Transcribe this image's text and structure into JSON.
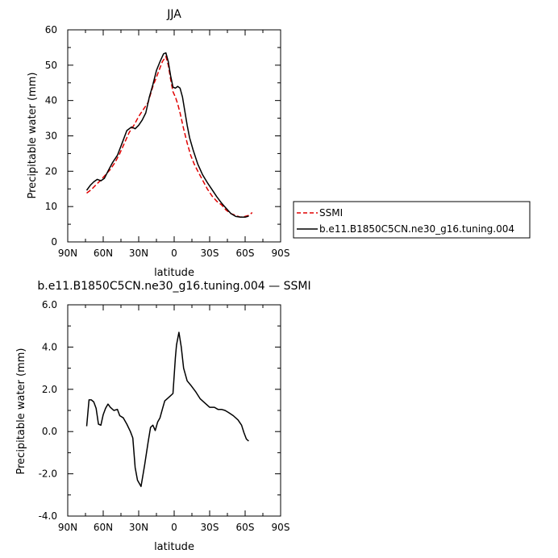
{
  "chart_data": [
    {
      "type": "line",
      "title": "JJA",
      "xlabel": "latitude",
      "ylabel": "Precipitable water (mm)",
      "xlim": [
        90,
        -90
      ],
      "ylim": [
        0,
        60
      ],
      "x_ticks": [
        {
          "v": 90,
          "label": "90N"
        },
        {
          "v": 60,
          "label": "60N"
        },
        {
          "v": 30,
          "label": "30N"
        },
        {
          "v": 0,
          "label": "0"
        },
        {
          "v": -30,
          "label": "30S"
        },
        {
          "v": -60,
          "label": "60S"
        },
        {
          "v": -90,
          "label": "90S"
        }
      ],
      "y_ticks": [
        {
          "v": 0,
          "label": "0"
        },
        {
          "v": 10,
          "label": "10"
        },
        {
          "v": 20,
          "label": "20"
        },
        {
          "v": 30,
          "label": "30"
        },
        {
          "v": 40,
          "label": "40"
        },
        {
          "v": 50,
          "label": "50"
        },
        {
          "v": 60,
          "label": "60"
        }
      ],
      "legend": "right, outside plot",
      "series": [
        {
          "name": "SSMI",
          "color": "#e00000",
          "dash": "dashed",
          "x": [
            74,
            70,
            66,
            62,
            58,
            54,
            50,
            46,
            42,
            38,
            34,
            30,
            26,
            22,
            18,
            14,
            10,
            7,
            5,
            3,
            1,
            -1,
            -3,
            -5,
            -8,
            -11,
            -14,
            -17,
            -20,
            -24,
            -28,
            -32,
            -36,
            -40,
            -44,
            -48,
            -52,
            -56,
            -60,
            -63,
            -66
          ],
          "y": [
            13.8,
            14.8,
            16.2,
            17.5,
            19.0,
            20.5,
            22.5,
            25.0,
            28.0,
            31.0,
            33.0,
            35.5,
            37.5,
            39.5,
            44.0,
            47.5,
            51.0,
            52.5,
            50.0,
            46.0,
            42.5,
            41.0,
            39.0,
            36.5,
            32.0,
            28.0,
            24.5,
            22.0,
            20.0,
            17.5,
            15.0,
            13.0,
            11.5,
            10.5,
            9.0,
            8.0,
            7.5,
            7.0,
            7.2,
            7.5,
            8.3
          ]
        },
        {
          "name": "b.e11.B1850C5CN.ne30_g16.tuning.004",
          "color": "#000000",
          "dash": "solid",
          "x": [
            74,
            71,
            68,
            65,
            62,
            59,
            56,
            52,
            48,
            44,
            40,
            36,
            33,
            30,
            27,
            24,
            21,
            18,
            15,
            12,
            9,
            7,
            5,
            3,
            1,
            -1,
            -3,
            -5,
            -7,
            -9,
            -11,
            -13,
            -16,
            -20,
            -24,
            -28,
            -32,
            -36,
            -40,
            -44,
            -48,
            -52,
            -56,
            -60,
            -63
          ],
          "y": [
            14.6,
            16.0,
            17.0,
            17.7,
            17.3,
            18.0,
            20.0,
            22.5,
            24.5,
            28.0,
            31.5,
            32.5,
            32.0,
            33.0,
            34.5,
            36.5,
            41.0,
            44.5,
            48.5,
            51.0,
            53.2,
            53.5,
            51.0,
            47.0,
            43.8,
            43.5,
            44.0,
            43.5,
            41.0,
            37.0,
            33.0,
            29.5,
            26.0,
            22.0,
            19.0,
            16.8,
            14.8,
            12.8,
            11.0,
            9.5,
            8.0,
            7.2,
            7.0,
            7.0,
            7.3
          ]
        }
      ]
    },
    {
      "type": "line",
      "title": "b.e11.B1850C5CN.ne30_g16.tuning.004 — SSMI",
      "xlabel": "latitude",
      "ylabel": "Precipitable water (mm)",
      "xlim": [
        90,
        -90
      ],
      "ylim": [
        -4.0,
        6.0
      ],
      "x_ticks": [
        {
          "v": 90,
          "label": "90N"
        },
        {
          "v": 60,
          "label": "60N"
        },
        {
          "v": 30,
          "label": "30N"
        },
        {
          "v": 0,
          "label": "0"
        },
        {
          "v": -30,
          "label": "30S"
        },
        {
          "v": -60,
          "label": "60S"
        },
        {
          "v": -90,
          "label": "90S"
        }
      ],
      "y_ticks": [
        {
          "v": -4,
          "label": "-4.0"
        },
        {
          "v": -2,
          "label": "-2.0"
        },
        {
          "v": 0,
          "label": "0.0"
        },
        {
          "v": 2,
          "label": "2.0"
        },
        {
          "v": 4,
          "label": "4.0"
        },
        {
          "v": 6,
          "label": "6.0"
        }
      ],
      "series": [
        {
          "color": "#000000",
          "dash": "solid",
          "x": [
            74,
            72,
            70,
            68,
            66,
            64,
            62,
            60,
            58,
            56,
            54,
            51,
            48,
            46,
            43,
            40,
            37,
            35,
            33,
            31,
            28,
            25,
            22,
            20,
            18,
            16,
            14,
            12,
            10,
            8,
            5,
            3,
            1,
            -1,
            -2,
            -4,
            -6,
            -8,
            -11,
            -14,
            -18,
            -22,
            -26,
            -30,
            -34,
            -37,
            -40,
            -43,
            -46,
            -50,
            -54,
            -57,
            -59,
            -61,
            -63
          ],
          "y": [
            0.25,
            1.5,
            1.5,
            1.4,
            1.1,
            0.35,
            0.3,
            0.8,
            1.1,
            1.3,
            1.15,
            1.0,
            1.05,
            0.75,
            0.65,
            0.35,
            0.0,
            -0.3,
            -1.7,
            -2.3,
            -2.6,
            -1.6,
            -0.5,
            0.2,
            0.3,
            0.05,
            0.45,
            0.65,
            1.05,
            1.45,
            1.6,
            1.7,
            1.8,
            3.5,
            4.1,
            4.7,
            4.0,
            3.0,
            2.4,
            2.2,
            1.9,
            1.55,
            1.35,
            1.15,
            1.15,
            1.05,
            1.05,
            1.0,
            0.9,
            0.75,
            0.55,
            0.3,
            -0.05,
            -0.35,
            -0.45
          ]
        }
      ]
    }
  ]
}
